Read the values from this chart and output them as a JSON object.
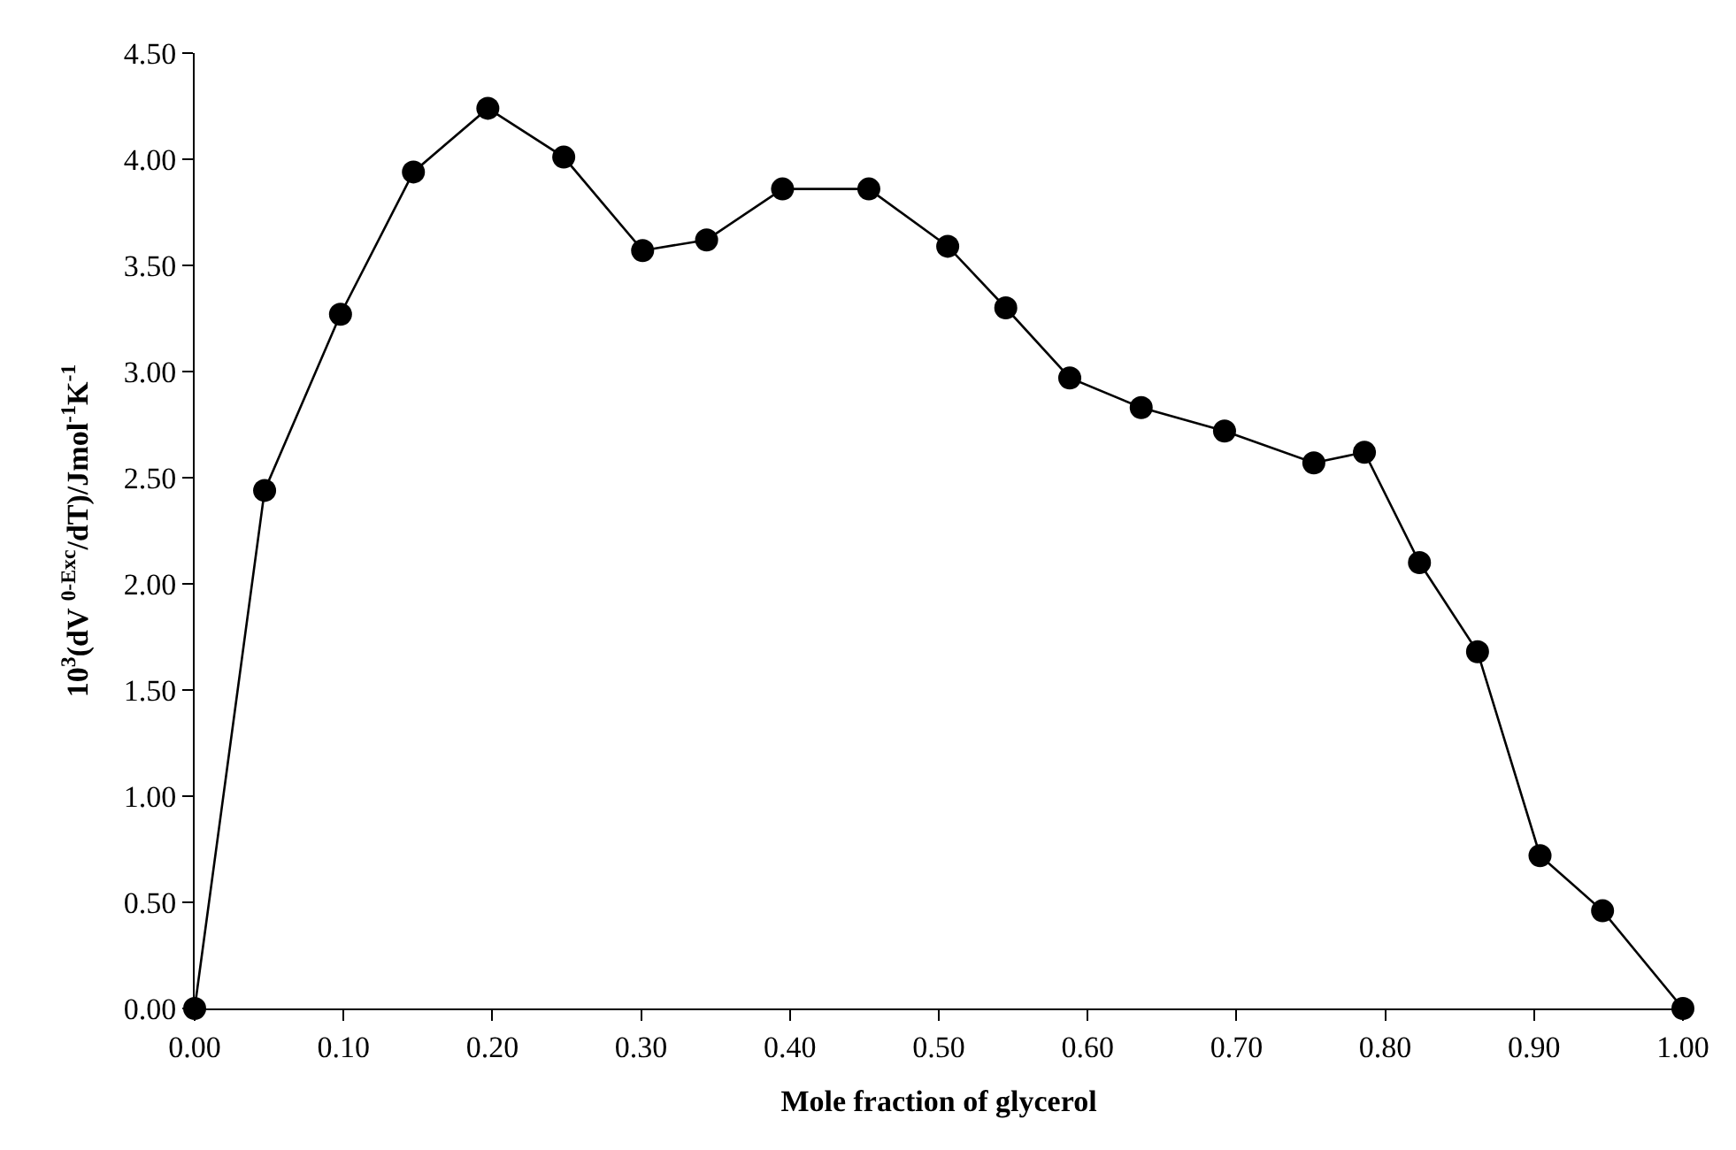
{
  "chart_data": {
    "type": "line",
    "xlabel": "Mole fraction of glycerol",
    "ylabel": "10$^{3}$(dV $^{0-Exc}$/dT)/Jmol$^{-1}$K$^{-1}$",
    "x": [
      0,
      0.047,
      0.098,
      0.147,
      0.197,
      0.248,
      0.301,
      0.344,
      0.395,
      0.453,
      0.506,
      0.545,
      0.588,
      0.636,
      0.692,
      0.752,
      0.786,
      0.823,
      0.862,
      0.904,
      0.946,
      1.0
    ],
    "series": [
      {
        "color": "#000000",
        "values": [
          0,
          2.44,
          3.27,
          3.94,
          4.24,
          4.01,
          3.57,
          3.62,
          3.86,
          3.86,
          3.59,
          3.3,
          2.97,
          2.83,
          2.72,
          2.57,
          2.62,
          2.1,
          1.68,
          0.72,
          0.46,
          0
        ]
      }
    ],
    "xlim": [
      0,
      1
    ],
    "ylim": [
      0,
      4.5
    ],
    "xticks": [
      {
        "value": 0,
        "label": "0.00"
      },
      {
        "value": 0.1,
        "label": "0.10"
      },
      {
        "value": 0.2,
        "label": "0.20"
      },
      {
        "value": 0.3,
        "label": "0.30"
      },
      {
        "value": 0.4,
        "label": "0.40"
      },
      {
        "value": 0.5,
        "label": "0.50"
      },
      {
        "value": 0.6,
        "label": "0.60"
      },
      {
        "value": 0.7,
        "label": "0.70"
      },
      {
        "value": 0.8,
        "label": "0.80"
      },
      {
        "value": 0.9,
        "label": "0.90"
      },
      {
        "value": 1.0,
        "label": "1.00"
      }
    ],
    "yticks": [
      {
        "value": 0,
        "label": "0.00"
      },
      {
        "value": 0.5,
        "label": "0.50"
      },
      {
        "value": 1.0,
        "label": "1.00"
      },
      {
        "value": 1.5,
        "label": "1.50"
      },
      {
        "value": 2.0,
        "label": "2.00"
      },
      {
        "value": 2.5,
        "label": "2.50"
      },
      {
        "value": 3.0,
        "label": "3.00"
      },
      {
        "value": 3.5,
        "label": "3.50"
      },
      {
        "value": 4.0,
        "label": "4.00"
      },
      {
        "value": 4.5,
        "label": "4.50"
      }
    ],
    "marker": "circle",
    "line_style": "solid"
  }
}
